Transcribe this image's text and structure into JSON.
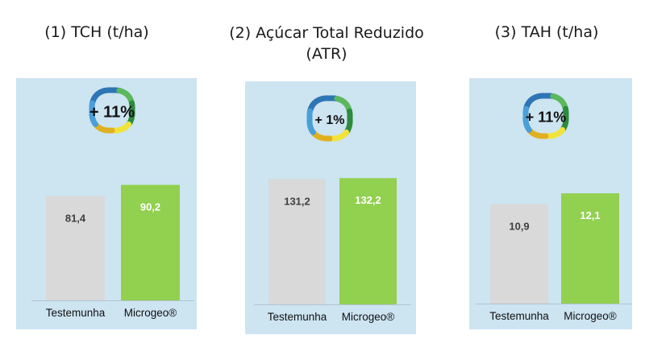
{
  "colors": {
    "panel": "#cde4f1",
    "control_bar": "#d9d9d9",
    "product_bar": "#92d050",
    "control_label": "#404040",
    "product_label": "#ffffff",
    "ring": [
      "#2e75b6",
      "#4a9fd8",
      "#e0b020",
      "#f2e33a",
      "#5cb85c",
      "#2e8b3d"
    ]
  },
  "chart_data": [
    {
      "type": "bar",
      "title": "(1)  TCH (t/ha)",
      "badge": "+ 11%",
      "categories": [
        "Testemunha",
        "Microgeo®"
      ],
      "values": [
        81.4,
        90.2
      ],
      "value_labels": [
        "81,4",
        "90,2"
      ],
      "ylim": [
        0,
        100
      ]
    },
    {
      "type": "bar",
      "title": "(2)  Açúcar Total Reduzido (ATR)",
      "badge": "+ 1%",
      "categories": [
        "Testemunha",
        "Microgeo®"
      ],
      "values": [
        131.2,
        132.2
      ],
      "value_labels": [
        "131,2",
        "132,2"
      ],
      "ylim": [
        0,
        145
      ]
    },
    {
      "type": "bar",
      "title": "(3)  TAH (t/ha)",
      "badge": "+ 11%",
      "categories": [
        "Testemunha",
        "Microgeo®"
      ],
      "values": [
        10.9,
        12.1
      ],
      "value_labels": [
        "10,9",
        "12,1"
      ],
      "ylim": [
        0,
        13.7
      ]
    }
  ]
}
